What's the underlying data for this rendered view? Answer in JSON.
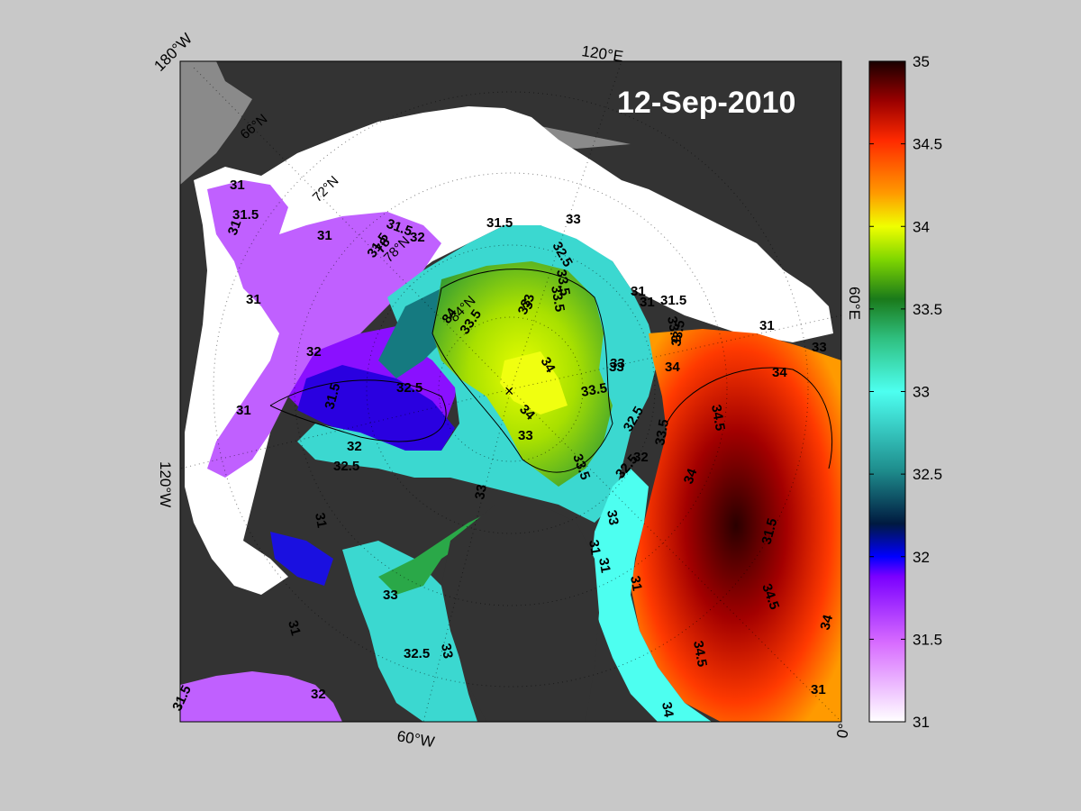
{
  "map": {
    "title": "12-Sep-2010",
    "longitude_labels": [
      "180°W",
      "120°E",
      "60°E",
      "0°",
      "60°W",
      "120°W"
    ],
    "latitude_labels": [
      "66°N",
      "72°N",
      "78°N",
      "84°N"
    ],
    "contour_labels": [
      "31",
      "31.5",
      "31",
      "31.5",
      "32",
      "31",
      "31.5",
      "78",
      "31",
      "31.5",
      "32.5",
      "33",
      "33.5",
      "84",
      "33.5",
      "33",
      "31",
      "31",
      "31.5",
      "31",
      "32",
      "32.5",
      "31.5",
      "31",
      "32",
      "32.5",
      "33",
      "34",
      "33.5",
      "34",
      "33",
      "33.5",
      "33",
      "33.5",
      "34",
      "33.5",
      "34.5",
      "34",
      "32.5",
      "33.5",
      "33",
      "34",
      "33",
      "32.5",
      "32",
      "33",
      "31",
      "33",
      "33.5",
      "34.5",
      "34",
      "34.5",
      "32.5",
      "33",
      "31",
      "32",
      "33",
      "34",
      "31.5",
      "31",
      "31",
      "31",
      "31.5",
      "31"
    ],
    "land_color": "#333333",
    "ice_color": "#ffffff",
    "background_color": "#c8c8c8"
  },
  "colorbar": {
    "min": 31,
    "max": 35,
    "ticks": [
      "31",
      "31.5",
      "32",
      "32.5",
      "33",
      "33.5",
      "34",
      "34.5",
      "35"
    ],
    "colors": [
      "#ffffff",
      "#9b00ff",
      "#0000ff",
      "#1e8c8c",
      "#4dfff0",
      "#2b9e30",
      "#f0ff00",
      "#ff6a00",
      "#1a0000"
    ]
  }
}
